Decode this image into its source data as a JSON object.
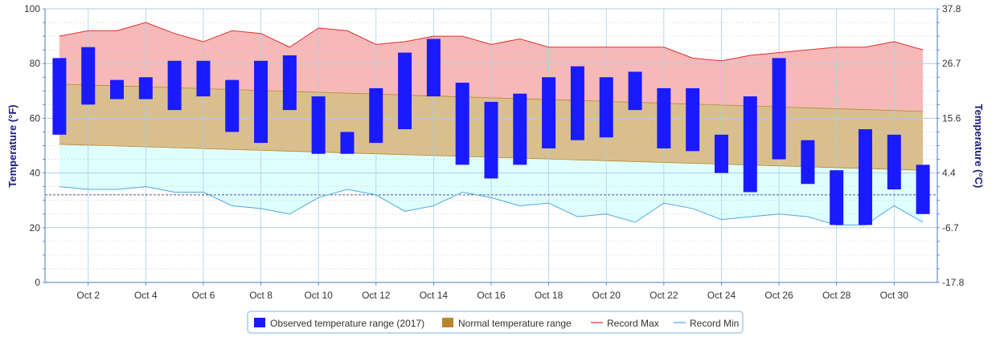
{
  "chart_data": {
    "type": "bar",
    "title": "",
    "ylabel_left": "Temperature (°F)",
    "ylabel_right": "Temperature (°C)",
    "ylim": [
      0,
      100
    ],
    "yticks": [
      "0",
      "20",
      "40",
      "60",
      "80",
      "100"
    ],
    "right_ticks": [
      "-17.8",
      "-6.7",
      "4.4",
      "15.6",
      "26.7",
      "37.8"
    ],
    "xtick_labels": [
      "Oct 2",
      "Oct 4",
      "Oct 6",
      "Oct 8",
      "Oct 10",
      "Oct 12",
      "Oct 14",
      "Oct 16",
      "Oct 18",
      "Oct 20",
      "Oct 22",
      "Oct 24",
      "Oct 26",
      "Oct 28",
      "Oct 30"
    ],
    "days": [
      1,
      2,
      3,
      4,
      5,
      6,
      7,
      8,
      9,
      10,
      11,
      12,
      13,
      14,
      15,
      16,
      17,
      18,
      19,
      20,
      21,
      22,
      23,
      24,
      25,
      26,
      27,
      28,
      29,
      30,
      31
    ],
    "freezing_line": 32,
    "grid": true,
    "legend_position": "bottom-center",
    "colors": {
      "observed": "#1a1aff",
      "normal": "#b8862b",
      "record_max": "#e03030",
      "record_min": "#4aa8e0",
      "record_fill": "#f7b8b8",
      "min_fill": "#dfffff",
      "normal_fill": "#d9bf8d",
      "grid": "#a8d0e6",
      "freezing": "#1a1a7a"
    },
    "series": [
      {
        "name": "Observed temperature range (2017)",
        "low": [
          54,
          65,
          67,
          67,
          63,
          68,
          55,
          51,
          63,
          47,
          47,
          51,
          56,
          68,
          43,
          38,
          43,
          49,
          52,
          53,
          63,
          49,
          48,
          40,
          33,
          45,
          36,
          21,
          21,
          34,
          25
        ],
        "high": [
          82,
          86,
          74,
          75,
          81,
          81,
          74,
          81,
          83,
          68,
          55,
          71,
          84,
          89,
          73,
          66,
          69,
          75,
          79,
          75,
          77,
          71,
          71,
          54,
          68,
          82,
          52,
          41,
          56,
          54,
          43
        ]
      },
      {
        "name": "Normal temperature range",
        "low_start": 50.5,
        "low_end": 41,
        "high_start": 72.5,
        "high_end": 62.5
      },
      {
        "name": "Record Max",
        "values": [
          90,
          92,
          92,
          95,
          91,
          88,
          92,
          91,
          86,
          93,
          92,
          87,
          88,
          90,
          90,
          87,
          89,
          86,
          86,
          86,
          86,
          86,
          82,
          81,
          83,
          84,
          85,
          86,
          86,
          88,
          85
        ]
      },
      {
        "name": "Record Min",
        "values": [
          35,
          34,
          34,
          35,
          33,
          33,
          28,
          27,
          25,
          31,
          34,
          32,
          26,
          28,
          33,
          31,
          28,
          29,
          24,
          25,
          22,
          29,
          27,
          23,
          24,
          25,
          24,
          21,
          21,
          28,
          22
        ]
      }
    ]
  }
}
